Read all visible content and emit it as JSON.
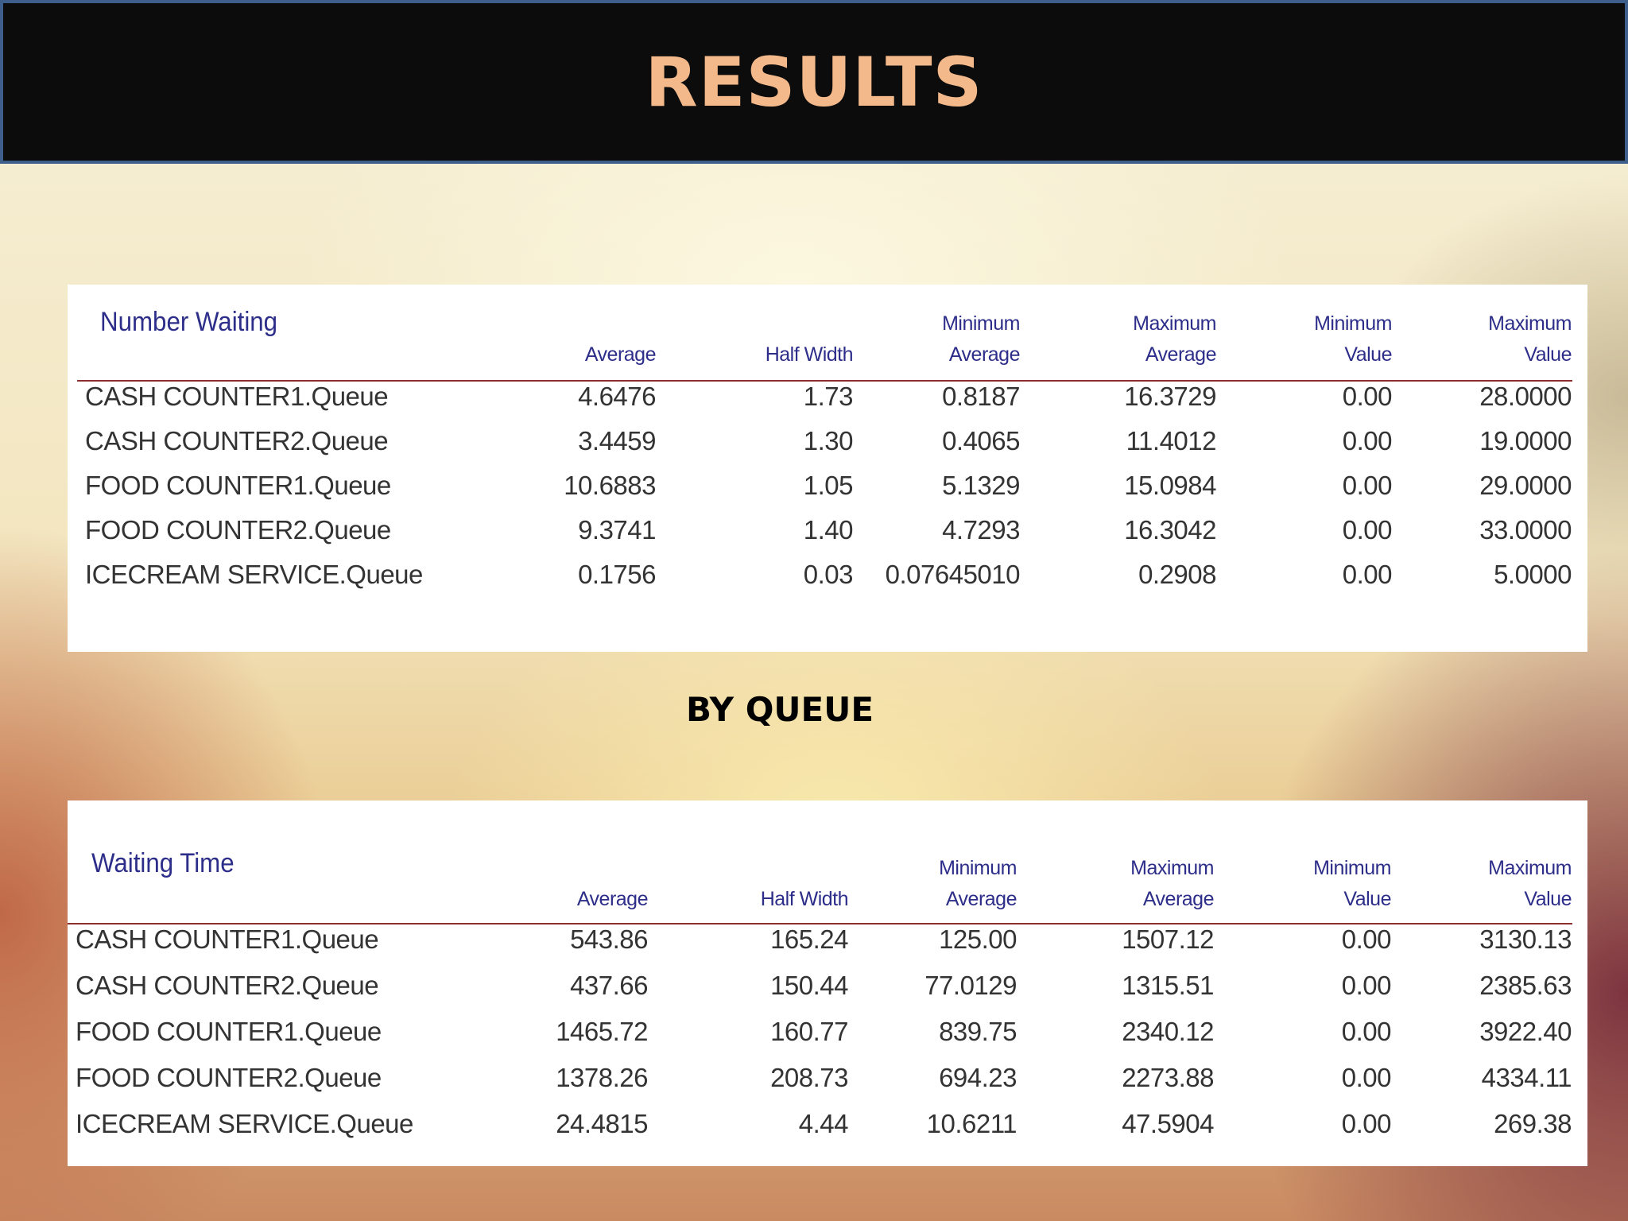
{
  "slide": {
    "title": "RESULTS",
    "subtitle": "BY QUEUE"
  },
  "tables": [
    {
      "title": "Number Waiting",
      "columns": [
        {
          "line1": "",
          "line2": "Average"
        },
        {
          "line1": "",
          "line2": "Half Width"
        },
        {
          "line1": "Minimum",
          "line2": "Average"
        },
        {
          "line1": "Maximum",
          "line2": "Average"
        },
        {
          "line1": "Minimum",
          "line2": "Value"
        },
        {
          "line1": "Maximum",
          "line2": "Value"
        }
      ],
      "rows": [
        {
          "name": "CASH COUNTER1.Queue",
          "values": [
            "4.6476",
            "1.73",
            "0.8187",
            "16.3729",
            "0.00",
            "28.0000"
          ]
        },
        {
          "name": "CASH COUNTER2.Queue",
          "values": [
            "3.4459",
            "1.30",
            "0.4065",
            "11.4012",
            "0.00",
            "19.0000"
          ]
        },
        {
          "name": "FOOD COUNTER1.Queue",
          "values": [
            "10.6883",
            "1.05",
            "5.1329",
            "15.0984",
            "0.00",
            "29.0000"
          ]
        },
        {
          "name": "FOOD COUNTER2.Queue",
          "values": [
            "9.3741",
            "1.40",
            "4.7293",
            "16.3042",
            "0.00",
            "33.0000"
          ]
        },
        {
          "name": "ICECREAM SERVICE.Queue",
          "values": [
            "0.1756",
            "0.03",
            "0.07645010",
            "0.2908",
            "0.00",
            "5.0000"
          ]
        }
      ]
    },
    {
      "title": "Waiting Time",
      "columns": [
        {
          "line1": "",
          "line2": "Average"
        },
        {
          "line1": "",
          "line2": "Half Width"
        },
        {
          "line1": "Minimum",
          "line2": "Average"
        },
        {
          "line1": "Maximum",
          "line2": "Average"
        },
        {
          "line1": "Minimum",
          "line2": "Value"
        },
        {
          "line1": "Maximum",
          "line2": "Value"
        }
      ],
      "rows": [
        {
          "name": "CASH COUNTER1.Queue",
          "values": [
            "543.86",
            "165.24",
            "125.00",
            "1507.12",
            "0.00",
            "3130.13"
          ]
        },
        {
          "name": "CASH COUNTER2.Queue",
          "values": [
            "437.66",
            "150.44",
            "77.0129",
            "1315.51",
            "0.00",
            "2385.63"
          ]
        },
        {
          "name": "FOOD COUNTER1.Queue",
          "values": [
            "1465.72",
            "160.77",
            "839.75",
            "2340.12",
            "0.00",
            "3922.40"
          ]
        },
        {
          "name": "FOOD COUNTER2.Queue",
          "values": [
            "1378.26",
            "208.73",
            "694.23",
            "2273.88",
            "0.00",
            "4334.11"
          ]
        },
        {
          "name": "ICECREAM SERVICE.Queue",
          "values": [
            "24.4815",
            "4.44",
            "10.6211",
            "47.5904",
            "0.00",
            "269.38"
          ]
        }
      ]
    }
  ]
}
